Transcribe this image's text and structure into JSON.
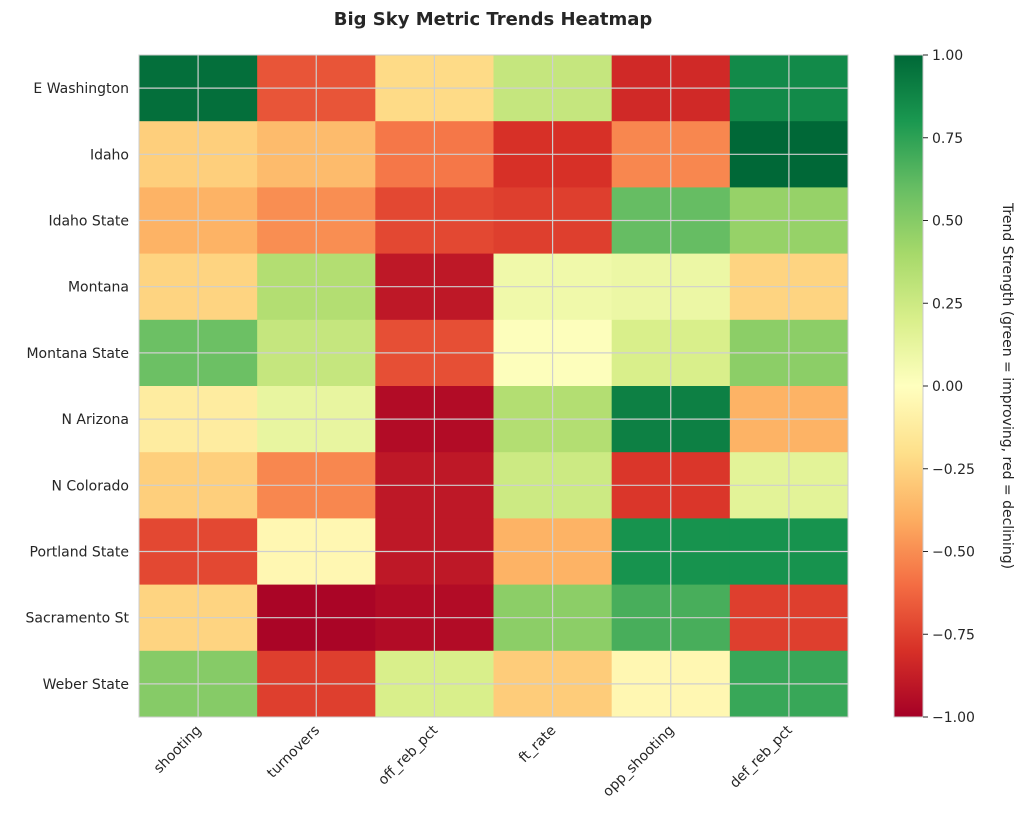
{
  "chart_data": {
    "type": "heatmap",
    "title": "Big Sky Metric Trends Heatmap",
    "columns": [
      "shooting",
      "turnovers",
      "off_reb_pct",
      "ft_rate",
      "opp_shooting",
      "def_reb_pct"
    ],
    "rows": [
      "E Washington",
      "Idaho",
      "Idaho State",
      "Montana",
      "Montana State",
      "N Arizona",
      "N Colorado",
      "Portland State",
      "Sacramento St",
      "Weber State"
    ],
    "values": [
      [
        0.97,
        -0.68,
        -0.22,
        0.28,
        -0.83,
        0.86
      ],
      [
        -0.27,
        -0.35,
        -0.57,
        -0.8,
        -0.52,
        1.0
      ],
      [
        -0.38,
        -0.5,
        -0.72,
        -0.75,
        0.6,
        0.45
      ],
      [
        -0.25,
        0.35,
        -0.9,
        0.08,
        0.1,
        -0.25
      ],
      [
        0.58,
        0.28,
        -0.7,
        0.01,
        0.2,
        0.48
      ],
      [
        -0.12,
        0.12,
        -0.95,
        0.35,
        0.9,
        -0.38
      ],
      [
        -0.27,
        -0.52,
        -0.9,
        0.25,
        -0.78,
        0.15
      ],
      [
        -0.72,
        -0.05,
        -0.9,
        -0.38,
        0.82,
        0.82
      ],
      [
        -0.25,
        -0.98,
        -0.95,
        0.48,
        0.68,
        -0.75
      ],
      [
        0.5,
        -0.75,
        0.2,
        -0.28,
        -0.05,
        0.72
      ]
    ],
    "vmin": -1,
    "vmax": 1,
    "colormap": "RdYlGn",
    "grid": true,
    "colorbar": {
      "label": "Trend Strength (green = improving, red = declining)",
      "ticks": [
        1.0,
        0.75,
        0.5,
        0.25,
        0.0,
        -0.25,
        -0.5,
        -0.75,
        -1.0
      ],
      "tick_labels": [
        "1.00",
        "0.75",
        "0.50",
        "0.25",
        "0.00",
        "−0.25",
        "−0.50",
        "−0.75",
        "−1.00"
      ]
    }
  }
}
